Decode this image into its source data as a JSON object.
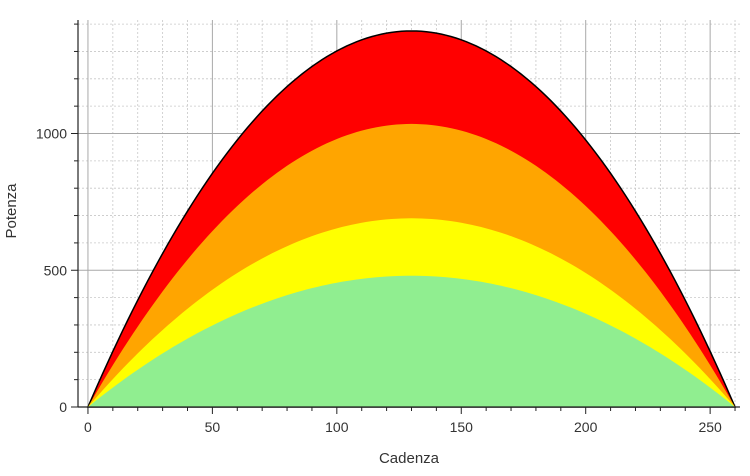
{
  "chart_data": {
    "type": "area",
    "title": "",
    "xlabel": "Cadenza",
    "ylabel": "Potenza",
    "xlim": [
      -4,
      262
    ],
    "ylim": [
      0,
      1415
    ],
    "x_ticks": [
      0,
      50,
      100,
      150,
      200,
      250
    ],
    "y_ticks": [
      0,
      500,
      1000
    ],
    "x_minor_step": 10,
    "y_minor_step": 100,
    "grid": true,
    "legend": "none",
    "zero_cadence": 260,
    "peak_cadence": 130,
    "series": [
      {
        "color": "#ff0000",
        "outline": "#000000",
        "x": [
          0,
          25,
          50,
          75,
          100,
          130,
          155,
          180,
          205,
          230,
          260
        ],
        "values": [
          0,
          510,
          900,
          1170,
          1320,
          1375,
          1320,
          1170,
          900,
          510,
          0
        ]
      },
      {
        "color": "#ffa500",
        "x": [
          0,
          25,
          50,
          75,
          100,
          130,
          155,
          180,
          205,
          230,
          260
        ],
        "values": [
          0,
          385,
          675,
          880,
          995,
          1035,
          995,
          880,
          675,
          385,
          0
        ]
      },
      {
        "color": "#ffff00",
        "x": [
          0,
          25,
          50,
          75,
          100,
          130,
          155,
          180,
          205,
          230,
          260
        ],
        "values": [
          0,
          255,
          450,
          585,
          660,
          690,
          660,
          585,
          450,
          255,
          0
        ]
      },
      {
        "color": "#90ee90",
        "x": [
          0,
          25,
          50,
          75,
          100,
          130,
          155,
          180,
          205,
          230,
          260
        ],
        "values": [
          0,
          180,
          315,
          410,
          460,
          480,
          460,
          410,
          315,
          180,
          0
        ]
      }
    ]
  }
}
